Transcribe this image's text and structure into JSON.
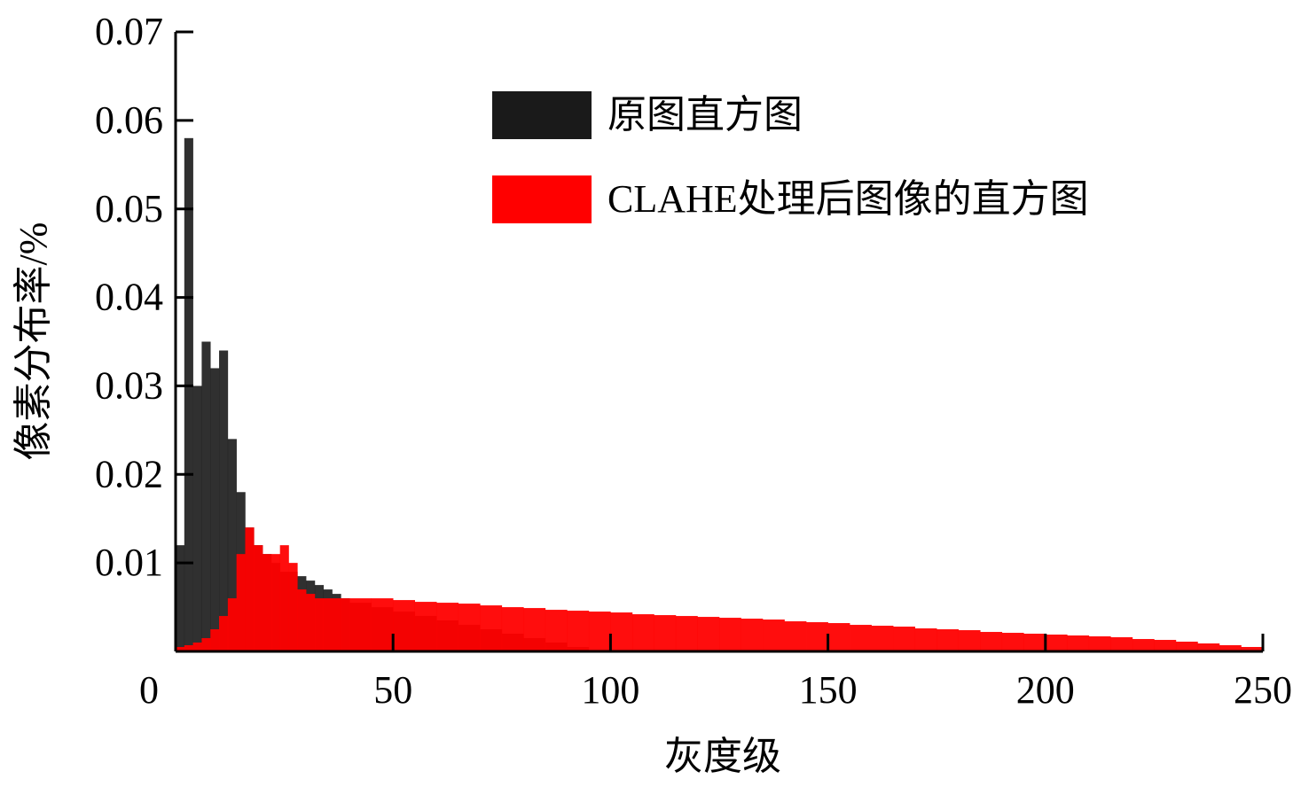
{
  "chart_data": {
    "type": "histogram",
    "xlabel": "灰度级",
    "ylabel": "像素分布率/%",
    "xlim": [
      0,
      250
    ],
    "ylim": [
      0,
      0.07
    ],
    "xticks": [
      0,
      50,
      100,
      150,
      200,
      250
    ],
    "yticks": [
      0.01,
      0.02,
      0.03,
      0.04,
      0.05,
      0.06,
      0.07
    ],
    "legend": "top-right",
    "bins": [
      0,
      2,
      4,
      6,
      8,
      10,
      12,
      14,
      16,
      18,
      20,
      22,
      24,
      26,
      28,
      30,
      32,
      34,
      36,
      38,
      40,
      45,
      50,
      55,
      60,
      65,
      70,
      75,
      80,
      85,
      90,
      95,
      100,
      105,
      110,
      115,
      120,
      125,
      130,
      135,
      140,
      145,
      150,
      155,
      160,
      165,
      170,
      175,
      180,
      185,
      190,
      195,
      200,
      205,
      210,
      215,
      220,
      225,
      230,
      235,
      240,
      245,
      250
    ],
    "series": [
      {
        "name": "原图直方图",
        "color": "#1a1a1a",
        "values": [
          0.012,
          0.058,
          0.03,
          0.035,
          0.032,
          0.034,
          0.024,
          0.018,
          0.014,
          0.012,
          0.011,
          0.01,
          0.009,
          0.009,
          0.0085,
          0.008,
          0.0075,
          0.007,
          0.0065,
          0.006,
          0.0055,
          0.005,
          0.0045,
          0.004,
          0.0035,
          0.003,
          0.0025,
          0.002,
          0.0015,
          0.001,
          0.0005,
          0,
          0,
          0,
          0,
          0,
          0,
          0,
          0,
          0,
          0,
          0,
          0,
          0,
          0,
          0,
          0,
          0,
          0,
          0,
          0,
          0,
          0,
          0,
          0,
          0,
          0,
          0,
          0,
          0,
          0,
          0
        ]
      },
      {
        "name": "CLAHE处理后图像的直方图",
        "color": "#ff0000",
        "values": [
          0.0005,
          0.0007,
          0.001,
          0.0015,
          0.0025,
          0.004,
          0.006,
          0.011,
          0.014,
          0.012,
          0.011,
          0.011,
          0.012,
          0.01,
          0.007,
          0.0065,
          0.006,
          0.006,
          0.006,
          0.006,
          0.006,
          0.006,
          0.0058,
          0.0056,
          0.0055,
          0.0054,
          0.0052,
          0.005,
          0.0049,
          0.0047,
          0.0046,
          0.0045,
          0.0044,
          0.0042,
          0.0041,
          0.004,
          0.0039,
          0.0038,
          0.0037,
          0.0036,
          0.0034,
          0.0033,
          0.0032,
          0.003,
          0.0029,
          0.0028,
          0.0026,
          0.0025,
          0.0024,
          0.0022,
          0.0021,
          0.002,
          0.0019,
          0.0018,
          0.0017,
          0.0016,
          0.0014,
          0.0013,
          0.0011,
          0.0009,
          0.0007,
          0.0005
        ]
      }
    ]
  }
}
